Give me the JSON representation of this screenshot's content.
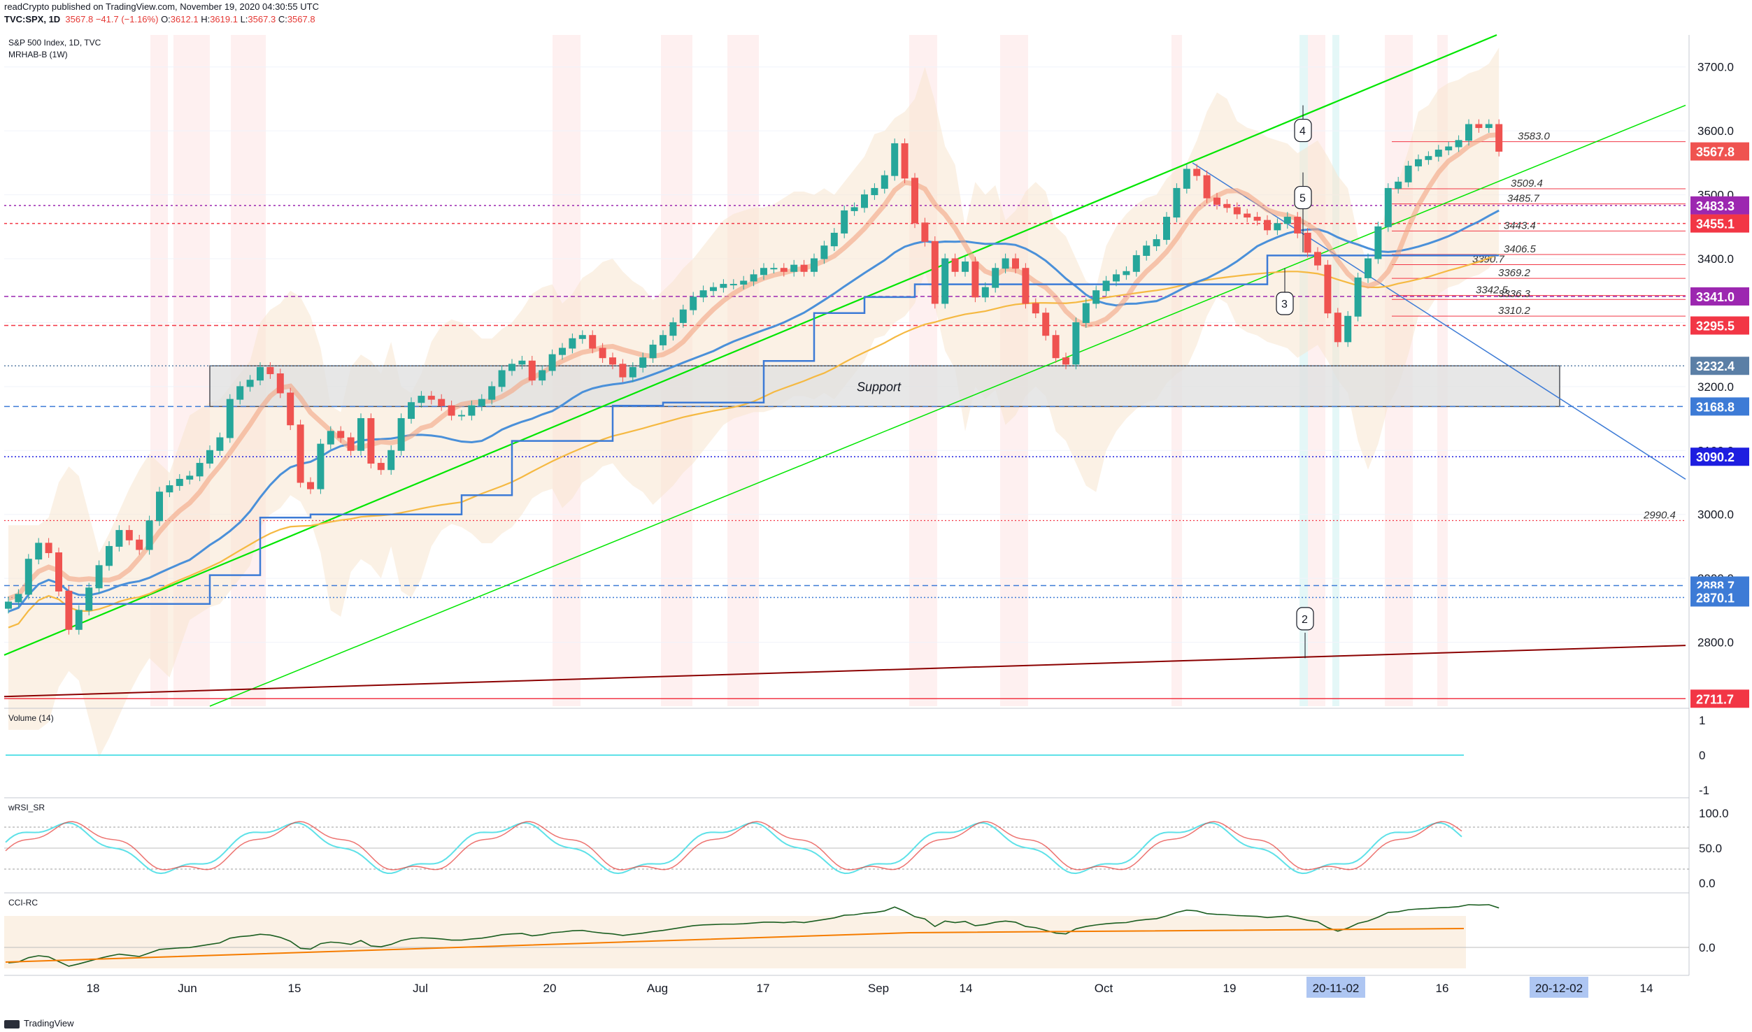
{
  "header": {
    "publisher_line": "readCrypto published on TradingView.com, November 19, 2020 04:30:55 UTC",
    "symbol": "TVC:SPX, 1D",
    "change": "−41.7 (−1.16%)",
    "o_label": "O:",
    "o_value": "3612.1",
    "h_label": "H:",
    "h_value": "3619.1",
    "l_label": "L:",
    "l_value": "3567.3",
    "c_label": "C:",
    "c_value": "3567.8"
  },
  "footer": {
    "brand": "TradingView"
  },
  "colors": {
    "bull": "#26a69a",
    "bear": "#ef5350",
    "grid": "#f0f3fa",
    "red_level": "#f23645",
    "blue_level": "#1e1ee0",
    "purple_level": "#9c27b0",
    "channel_green": "#00e600",
    "trend_blue": "#3d7bd6",
    "dark_red_line": "#8b0000",
    "support_box": "#e0e0e0"
  },
  "chart_data": [
    {
      "type": "candlestick",
      "title": "S&P 500 Index, 1D, TVC",
      "subtitle": "MRHAB-B (1W)",
      "ylim": [
        2700,
        3750
      ],
      "y_ticks": [
        2800,
        2900,
        3000,
        3100,
        3200,
        3300,
        3400,
        3500,
        3600,
        3700
      ],
      "x_ticks": [
        "18",
        "Jun",
        "15",
        "Jul",
        "20",
        "Aug",
        "17",
        "Sep",
        "14",
        "Oct",
        "19",
        "20-11-02",
        "16",
        "20-12-02",
        "14"
      ],
      "price_labels": [
        {
          "value": 3567.8,
          "label": "3567.8",
          "color": "#ef5350"
        },
        {
          "value": 3483.3,
          "label": "3483.3",
          "color": "#9c27b0"
        },
        {
          "value": 3455.1,
          "label": "3455.1",
          "color": "#f23645"
        },
        {
          "value": 3341.0,
          "label": "3341.0",
          "color": "#9c27b0"
        },
        {
          "value": 3295.5,
          "label": "3295.5",
          "color": "#f23645"
        },
        {
          "value": 3232.4,
          "label": "3232.4",
          "color": "#5b7fa6"
        },
        {
          "value": 3168.8,
          "label": "3168.8",
          "color": "#3d7bd6"
        },
        {
          "value": 3090.2,
          "label": "3090.2",
          "color": "#1e1ee0"
        },
        {
          "value": 2888.7,
          "label": "2888.7",
          "color": "#3d7bd6"
        },
        {
          "value": 2870.1,
          "label": "2870.1",
          "color": "#3d7bd6"
        },
        {
          "value": 2711.7,
          "label": "2711.7",
          "color": "#f23645"
        }
      ],
      "level_annotations": [
        {
          "value": 3583.0,
          "label": "3583.0"
        },
        {
          "value": 3509.4,
          "label": "3509.4"
        },
        {
          "value": 3485.7,
          "label": "3485.7"
        },
        {
          "value": 3443.4,
          "label": "3443.4"
        },
        {
          "value": 3406.5,
          "label": "3406.5"
        },
        {
          "value": 3390.7,
          "label": "3390.7"
        },
        {
          "value": 3369.2,
          "label": "3369.2"
        },
        {
          "value": 3342.5,
          "label": "3342.5"
        },
        {
          "value": 3336.3,
          "label": "3336.3"
        },
        {
          "value": 3310.2,
          "label": "3310.2"
        },
        {
          "value": 2990.4,
          "label": "2990.4"
        }
      ],
      "support_label": "Support",
      "callouts": [
        "4",
        "5",
        "3",
        "2"
      ],
      "closes": [
        2863,
        2875,
        2930,
        2955,
        2940,
        2880,
        2820,
        2850,
        2885,
        2920,
        2950,
        2975,
        2960,
        2945,
        2990,
        3035,
        3045,
        3055,
        3060,
        3080,
        3100,
        3120,
        3180,
        3200,
        3210,
        3230,
        3220,
        3190,
        3140,
        3050,
        3040,
        3110,
        3130,
        3120,
        3100,
        3150,
        3080,
        3070,
        3100,
        3150,
        3175,
        3185,
        3180,
        3170,
        3155,
        3155,
        3170,
        3180,
        3200,
        3225,
        3235,
        3240,
        3210,
        3225,
        3250,
        3260,
        3275,
        3280,
        3260,
        3245,
        3235,
        3215,
        3230,
        3245,
        3265,
        3280,
        3300,
        3320,
        3340,
        3350,
        3355,
        3360,
        3360,
        3365,
        3375,
        3385,
        3385,
        3380,
        3390,
        3380,
        3400,
        3420,
        3440,
        3475,
        3480,
        3500,
        3510,
        3530,
        3580,
        3526,
        3456,
        3427,
        3330,
        3400,
        3380,
        3395,
        3340,
        3355,
        3385,
        3400,
        3385,
        3330,
        3315,
        3280,
        3245,
        3235,
        3300,
        3330,
        3350,
        3365,
        3375,
        3380,
        3405,
        3420,
        3430,
        3465,
        3510,
        3540,
        3530,
        3495,
        3485,
        3480,
        3470,
        3465,
        3460,
        3445,
        3455,
        3465,
        3440,
        3410,
        3390,
        3315,
        3270,
        3310,
        3370,
        3400,
        3450,
        3510,
        3520,
        3545,
        3555,
        3560,
        3570,
        3575,
        3585,
        3610,
        3605,
        3610,
        3568
      ]
    },
    {
      "type": "line",
      "title": "Volume (14)",
      "y_ticks": [
        1,
        0,
        -1
      ],
      "values": [
        0
      ]
    },
    {
      "type": "line",
      "title": "wRSI_SR",
      "y_ticks": [
        100.0,
        50.0,
        0.0
      ],
      "ylim": [
        0,
        100
      ]
    },
    {
      "type": "line",
      "title": "CCI-RC",
      "y_ticks": [
        0.0
      ]
    }
  ]
}
